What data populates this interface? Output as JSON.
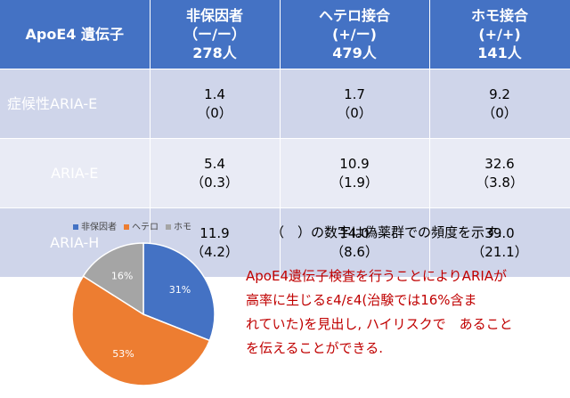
{
  "table": {
    "corner_label": "ApoE4 遺伝子",
    "columns": [
      {
        "name": "非保因者",
        "genotype": "（ー/ー）",
        "count": "278人"
      },
      {
        "name": "ヘテロ接合",
        "genotype": "(+/ー)",
        "count": "479人"
      },
      {
        "name": "ホモ接合",
        "genotype": "(+/+)",
        "count": "141人"
      }
    ],
    "rows": [
      {
        "label": "症候性ARIA-E",
        "cells": [
          {
            "value": "1.4",
            "placebo": "（0）"
          },
          {
            "value": "1.7",
            "placebo": "（0）"
          },
          {
            "value": "9.2",
            "placebo": "（0）"
          }
        ]
      },
      {
        "label": "ARIA-E",
        "cells": [
          {
            "value": "5.4",
            "placebo": "（0.3）"
          },
          {
            "value": "10.9",
            "placebo": "（1.9）"
          },
          {
            "value": "32.6",
            "placebo": "（3.8）"
          }
        ]
      },
      {
        "label": "ARIA-H",
        "cells": [
          {
            "value": "11.9",
            "placebo": "（4.2）"
          },
          {
            "value": "14.0",
            "placebo": "（8.6）"
          },
          {
            "value": "39.0",
            "placebo": "（21.1）"
          }
        ]
      }
    ]
  },
  "note": "（　）の数字は偽薬群での頻度を示す.",
  "chart_data": {
    "type": "pie",
    "categories": [
      "非保因者",
      "ヘテロ",
      "ホモ"
    ],
    "values": [
      31,
      53,
      16
    ],
    "labels": [
      "31%",
      "53%",
      "16%"
    ],
    "colors": [
      "#4472c4",
      "#ed7d31",
      "#a5a5a5"
    ],
    "legend": "top"
  },
  "message": {
    "lines": [
      "ApoE4遺伝子検査を行うことによりARIAが",
      "高率に生じるε4/ε4(治験では16%含ま",
      "れていた)を見出し, ハイリスクで　あること",
      "を伝えることができる."
    ]
  }
}
